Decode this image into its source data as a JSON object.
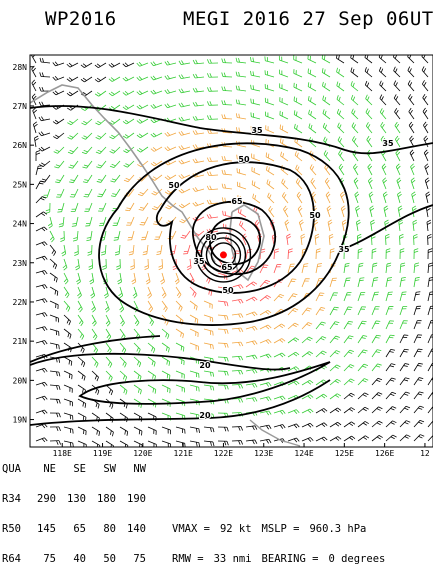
{
  "header": {
    "storm_id": "WP2016",
    "title": "MEGI 2016 27 Sep 06UTC"
  },
  "map": {
    "lat_labels": [
      "28N",
      "27N",
      "26N",
      "25N",
      "24N",
      "23N",
      "22N",
      "21N",
      "20N",
      "19N"
    ],
    "lon_labels": [
      "118E",
      "119E",
      "120E",
      "121E",
      "122E",
      "123E",
      "124E",
      "125E",
      "126E",
      "12"
    ],
    "lon_range": [
      117.2,
      127.2
    ],
    "lat_range": [
      18.3,
      28.3
    ],
    "wind_speed_contours_kt": [
      {
        "label": "35"
      },
      {
        "label": "35"
      },
      {
        "label": "35"
      },
      {
        "label": "35"
      },
      {
        "label": "50"
      },
      {
        "label": "50"
      },
      {
        "label": "50"
      },
      {
        "label": "50"
      },
      {
        "label": "65"
      },
      {
        "label": "65"
      },
      {
        "label": "80"
      },
      {
        "label": "20"
      },
      {
        "label": "20"
      }
    ],
    "barb_colors": {
      "below_34kt": "#000000",
      "34_to_49kt": "#33cc33",
      "50_to_63kt": "#f2a640",
      "64kt_plus": "#ff5555"
    },
    "center": {
      "lon": 122.0,
      "lat": 23.2,
      "color": "#ff0000"
    },
    "coastline_color": "#9a9a9a"
  },
  "footer": {
    "quadrant_header": [
      "QUA",
      "NE",
      "SE",
      "SW",
      "NW"
    ],
    "rows": [
      [
        "R34",
        "290",
        "130",
        "180",
        "190"
      ],
      [
        "R50",
        "145",
        "65",
        "80",
        "140"
      ],
      [
        "R64",
        "75",
        "40",
        "50",
        "75"
      ]
    ],
    "vmax_label": "VMAX =",
    "vmax_value": "92 kt",
    "mslp_label": "MSLP =",
    "mslp_value": "960.3 hPa",
    "rmw_label": "RMW =",
    "rmw_value": "33 nmi",
    "bearing_label": "BEARING =",
    "bearing_value": "0 degrees"
  }
}
